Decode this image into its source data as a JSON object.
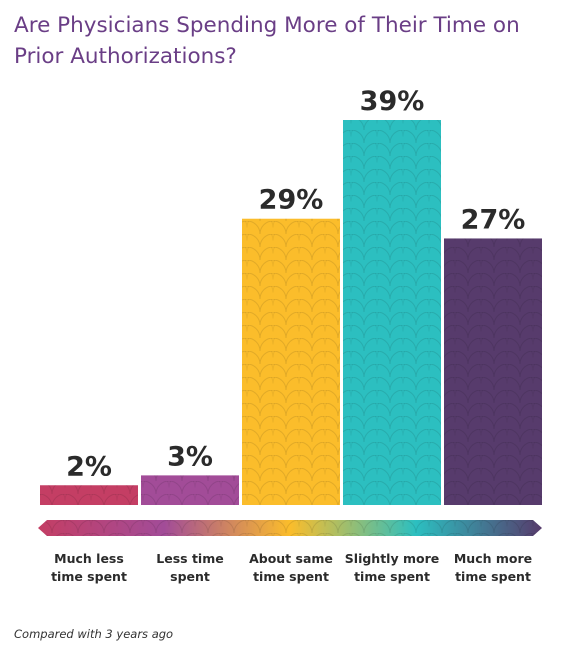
{
  "title": "Are Physicians Spending More of Their Time on Prior Authorizations?",
  "footnote": "Compared with 3 years ago",
  "chart_data": {
    "type": "bar",
    "title": "Are Physicians Spending More of Their Time on Prior Authorizations?",
    "categories": [
      [
        "Much less",
        "time spent"
      ],
      [
        "Less time",
        "spent"
      ],
      [
        "About same",
        "time spent"
      ],
      [
        "Slightly more",
        "time spent"
      ],
      [
        "Much more",
        "time spent"
      ]
    ],
    "values": [
      2,
      3,
      29,
      39,
      27
    ],
    "value_labels": [
      "2%",
      "3%",
      "29%",
      "39%",
      "27%"
    ],
    "colors": [
      "#c43e64",
      "#a24c98",
      "#fbbd2b",
      "#2cbfc0",
      "#573b6c"
    ],
    "ylim": [
      0,
      39
    ],
    "xlabel": "",
    "ylabel": "",
    "grid": false,
    "legend": "none",
    "axis_gradient": [
      "#c43e64",
      "#a24c98",
      "#fbbd2b",
      "#2cbfc0",
      "#573b6c"
    ]
  }
}
